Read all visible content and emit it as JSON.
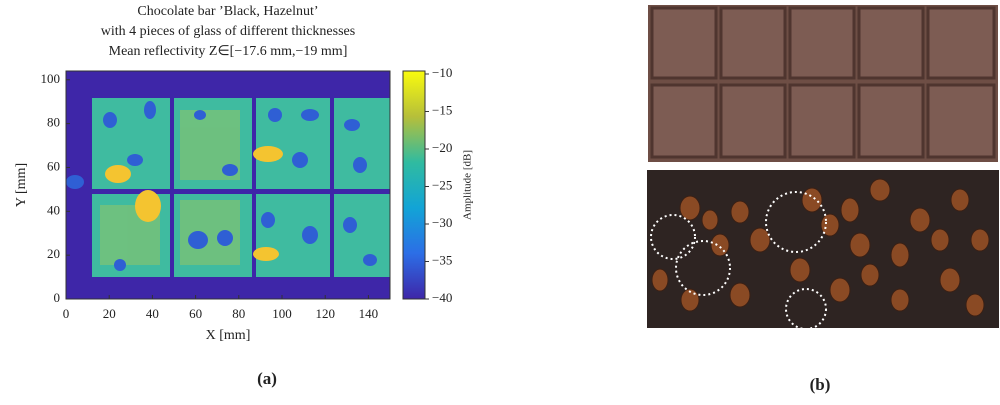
{
  "chart_data": {
    "type": "heatmap",
    "title": [
      "Chocolate bar ’Black, Hazelnut’",
      "with 4 pieces of glass of different thicknesses",
      "Mean reflectivity Z∈[−17.6 mm,−19 mm]"
    ],
    "xlabel": "X [mm]",
    "ylabel": "Y [mm]",
    "xlim": [
      0,
      150
    ],
    "xticks": [
      0,
      20,
      40,
      60,
      80,
      100,
      120,
      140
    ],
    "ylim": [
      0,
      104
    ],
    "yticks": [
      0,
      20,
      40,
      60,
      80,
      100
    ],
    "colorbar_label": "Amplitude [dB]",
    "clim": [
      -40,
      -9.6
    ],
    "cticks": [
      {
        "value": -40,
        "label": "−40"
      },
      {
        "value": -35,
        "label": "−35"
      },
      {
        "value": -30,
        "label": "−30"
      },
      {
        "value": -25,
        "label": "−25"
      },
      {
        "value": -20,
        "label": "−20"
      },
      {
        "value": -15,
        "label": "−15"
      },
      {
        "value": -10,
        "label": "−10"
      }
    ]
  },
  "captions": {
    "a": "(a)",
    "b": "(b)"
  }
}
